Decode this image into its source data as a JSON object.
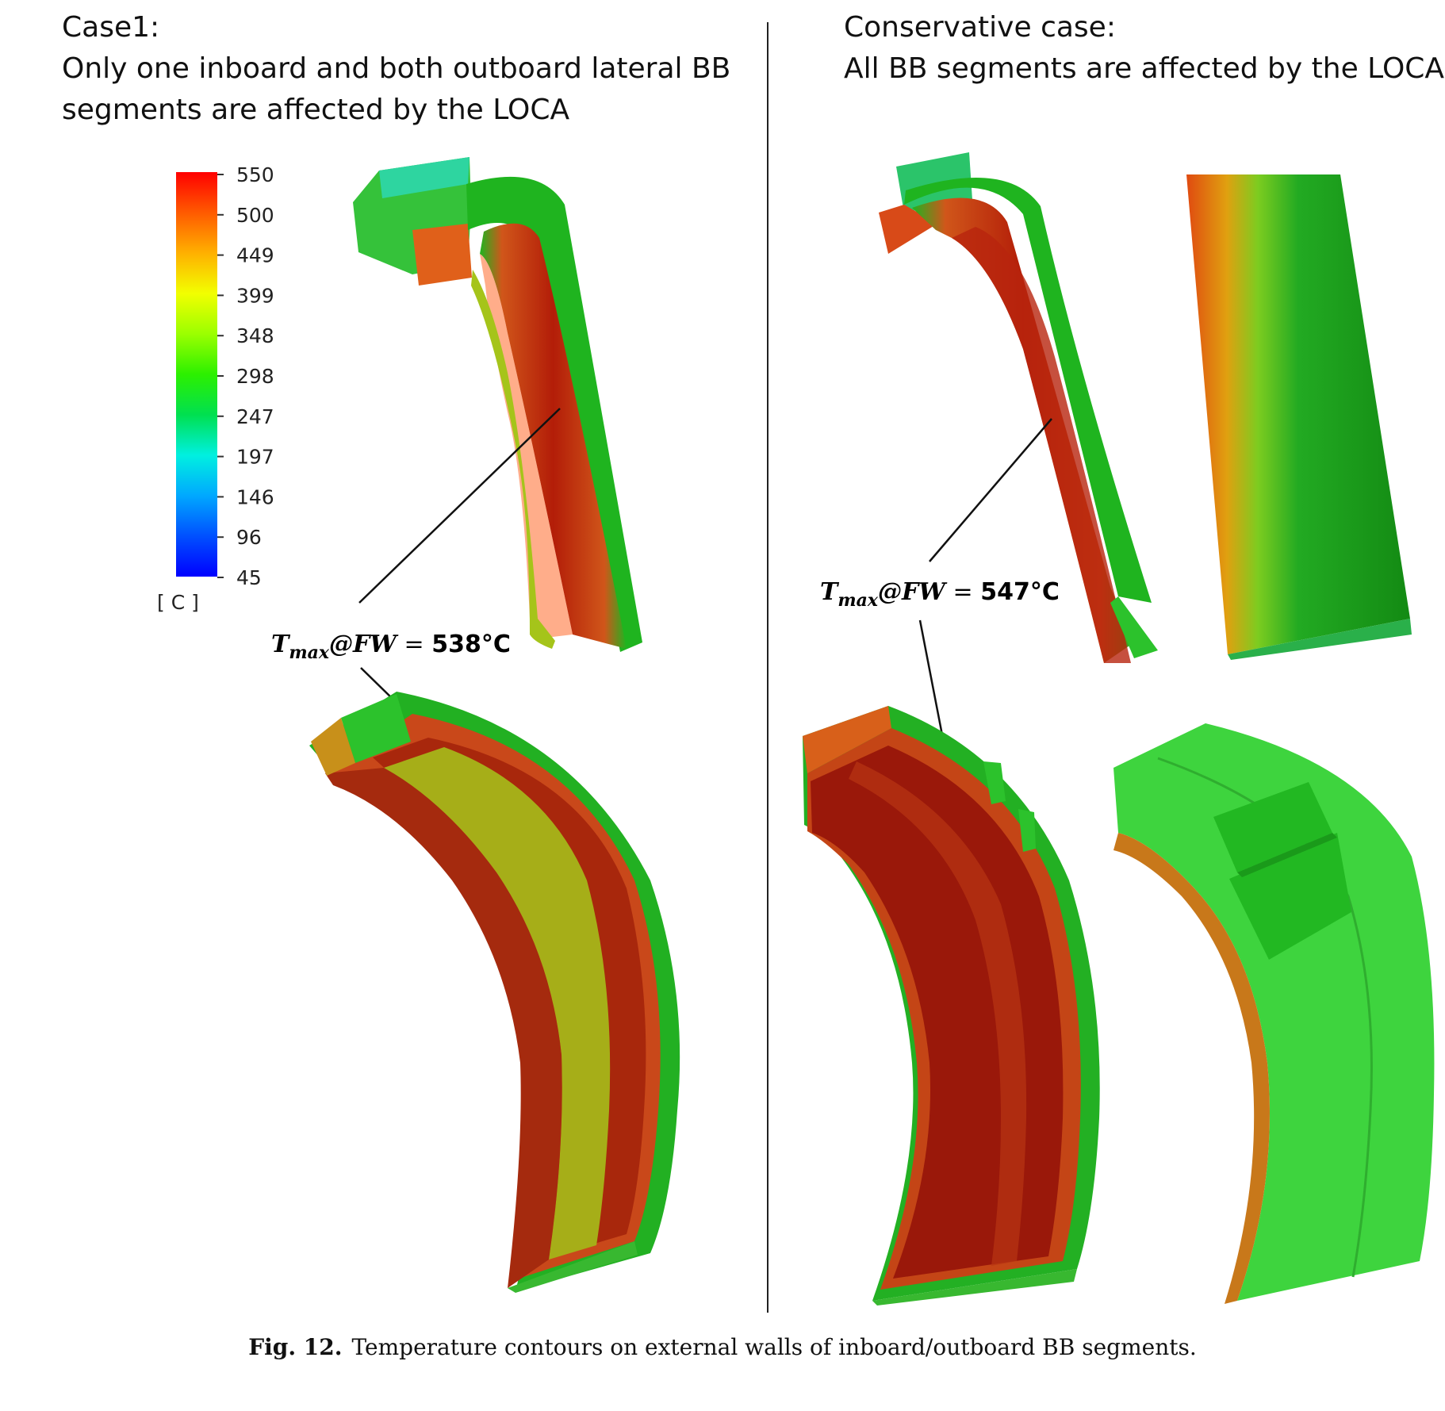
{
  "left_panel": {
    "title_line1": "Case1:",
    "title_line2": "Only one inboard and both outboard lateral BB",
    "title_line3": "segments are affected by the LOCA",
    "annotation": {
      "symbol": "T",
      "subscript": "max",
      "rest": "@FW",
      "equals": " = ",
      "value": "538°C"
    }
  },
  "right_panel": {
    "title_line1": "Conservative case:",
    "title_line2": "All BB segments are affected by the LOCA",
    "annotation": {
      "symbol": "T",
      "subscript": "max",
      "rest": "@FW",
      "equals": " = ",
      "value": "547°C"
    }
  },
  "colorbar": {
    "ticks": [
      "550",
      "500",
      "449",
      "399",
      "348",
      "298",
      "247",
      "197",
      "146",
      "96",
      "45"
    ],
    "unit": "[ C ]",
    "colors": [
      "#ff0000",
      "#ff7a00",
      "#ffd400",
      "#e8ff00",
      "#7dff00",
      "#18f000",
      "#00e58a",
      "#00e6ff",
      "#0095ff",
      "#0038ff",
      "#0000ff"
    ]
  },
  "caption": {
    "label": "Fig. 12.",
    "text": "Temperature contours on external walls of inboard/outboard BB segments."
  }
}
